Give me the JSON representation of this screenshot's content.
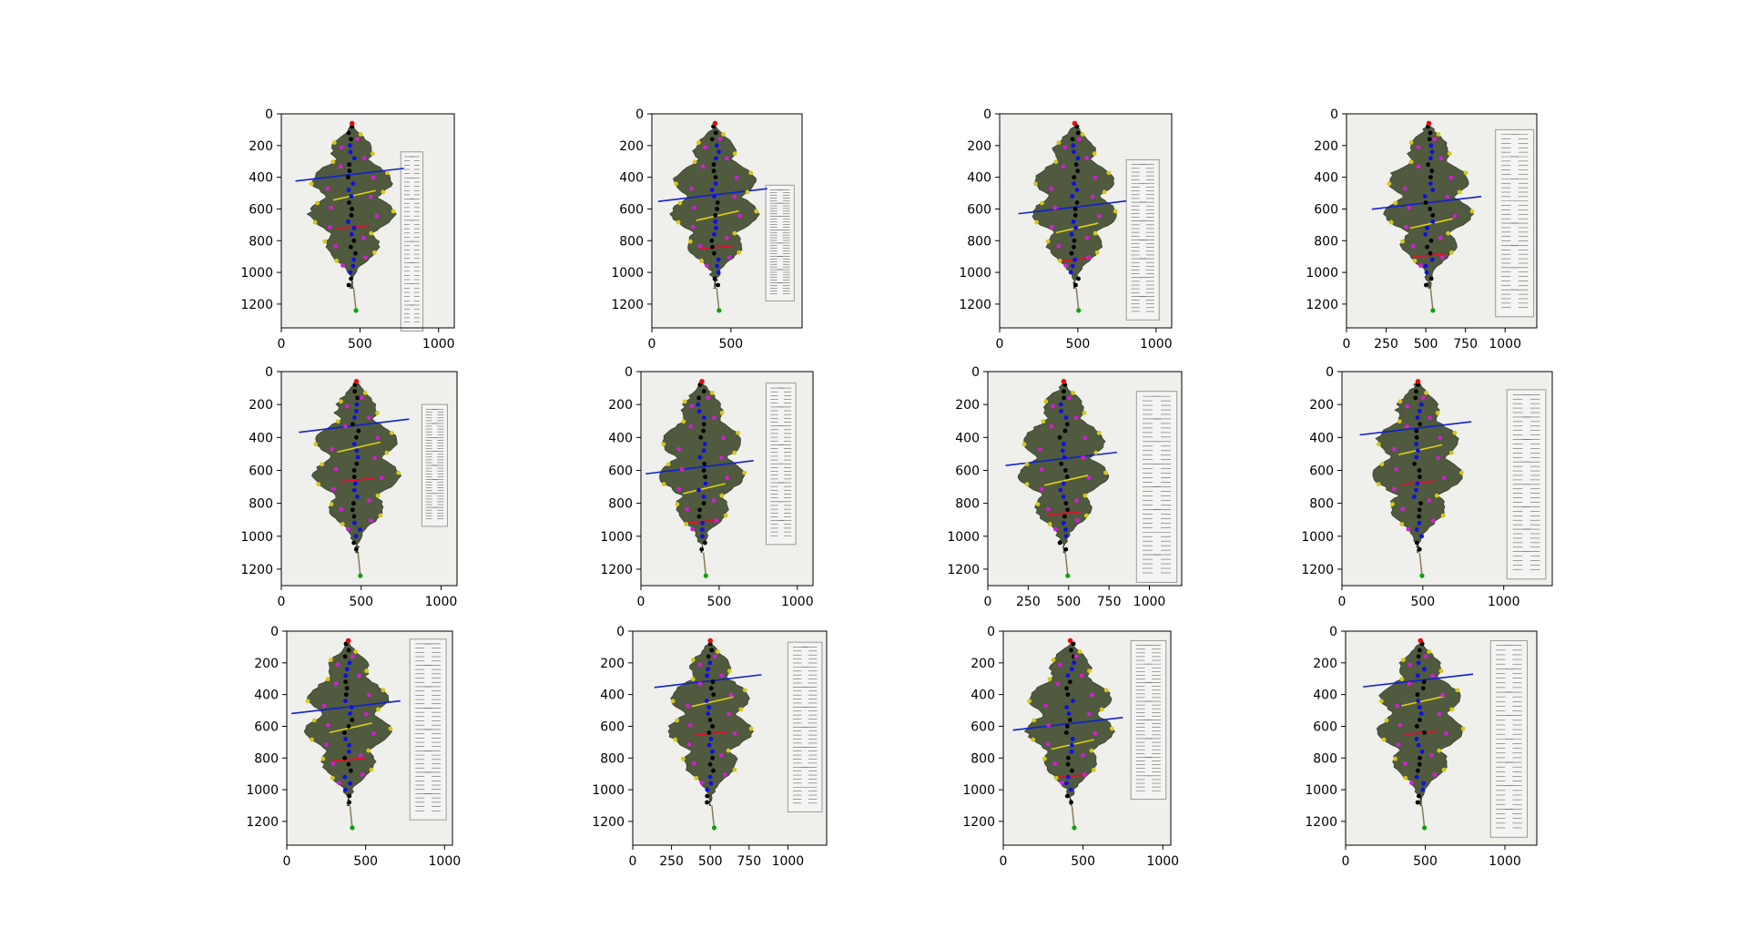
{
  "figure": {
    "rows": 3,
    "cols": 4
  },
  "chart_data": [
    {
      "type": "scatter",
      "image": "leaf",
      "x_ticks": [
        "0",
        "500",
        "1000"
      ],
      "y_ticks": [
        "0",
        "200",
        "400",
        "600",
        "800",
        "1000",
        "1200"
      ],
      "xlim": [
        0,
        1100
      ],
      "ylim": [
        1350,
        0
      ]
    },
    {
      "type": "scatter",
      "image": "leaf",
      "x_ticks": [
        "0",
        "500"
      ],
      "y_ticks": [
        "0",
        "200",
        "400",
        "600",
        "800",
        "1000",
        "1200"
      ],
      "xlim": [
        0,
        950
      ],
      "ylim": [
        1350,
        0
      ]
    },
    {
      "type": "scatter",
      "image": "leaf",
      "x_ticks": [
        "0",
        "500",
        "1000"
      ],
      "y_ticks": [
        "0",
        "200",
        "400",
        "600",
        "800",
        "1000",
        "1200"
      ],
      "xlim": [
        0,
        1100
      ],
      "ylim": [
        1350,
        0
      ]
    },
    {
      "type": "scatter",
      "image": "leaf",
      "x_ticks": [
        "0",
        "250",
        "500",
        "750",
        "1000"
      ],
      "y_ticks": [
        "0",
        "200",
        "400",
        "600",
        "800",
        "1000",
        "1200"
      ],
      "xlim": [
        0,
        1200
      ],
      "ylim": [
        1350,
        0
      ]
    },
    {
      "type": "scatter",
      "image": "leaf",
      "x_ticks": [
        "0",
        "500",
        "1000"
      ],
      "y_ticks": [
        "0",
        "200",
        "400",
        "600",
        "800",
        "1000",
        "1200"
      ],
      "xlim": [
        0,
        1100
      ],
      "ylim": [
        1300,
        0
      ]
    },
    {
      "type": "scatter",
      "image": "leaf",
      "x_ticks": [
        "0",
        "500",
        "1000"
      ],
      "y_ticks": [
        "0",
        "200",
        "400",
        "600",
        "800",
        "1000",
        "1200"
      ],
      "xlim": [
        0,
        1100
      ],
      "ylim": [
        1300,
        0
      ]
    },
    {
      "type": "scatter",
      "image": "leaf",
      "x_ticks": [
        "0",
        "250",
        "500",
        "750",
        "1000"
      ],
      "y_ticks": [
        "0",
        "200",
        "400",
        "600",
        "800",
        "1000",
        "1200"
      ],
      "xlim": [
        0,
        1200
      ],
      "ylim": [
        1300,
        0
      ]
    },
    {
      "type": "scatter",
      "image": "leaf",
      "x_ticks": [
        "0",
        "500",
        "1000"
      ],
      "y_ticks": [
        "0",
        "200",
        "400",
        "600",
        "800",
        "1000",
        "1200"
      ],
      "xlim": [
        0,
        1300
      ],
      "ylim": [
        1300,
        0
      ]
    },
    {
      "type": "scatter",
      "image": "leaf",
      "x_ticks": [
        "0",
        "500",
        "1000"
      ],
      "y_ticks": [
        "0",
        "200",
        "400",
        "600",
        "800",
        "1000",
        "1200"
      ],
      "xlim": [
        0,
        1050
      ],
      "ylim": [
        1350,
        0
      ]
    },
    {
      "type": "scatter",
      "image": "leaf",
      "x_ticks": [
        "0",
        "250",
        "500",
        "750",
        "1000"
      ],
      "y_ticks": [
        "0",
        "200",
        "400",
        "600",
        "800",
        "1000",
        "1200"
      ],
      "xlim": [
        0,
        1250
      ],
      "ylim": [
        1350,
        0
      ]
    },
    {
      "type": "scatter",
      "image": "leaf",
      "x_ticks": [
        "0",
        "500",
        "1000"
      ],
      "y_ticks": [
        "0",
        "200",
        "400",
        "600",
        "800",
        "1000",
        "1200"
      ],
      "xlim": [
        0,
        1050
      ],
      "ylim": [
        1350,
        0
      ]
    },
    {
      "type": "scatter",
      "image": "leaf",
      "x_ticks": [
        "0",
        "500",
        "1000"
      ],
      "y_ticks": [
        "0",
        "200",
        "400",
        "600",
        "800",
        "1000",
        "1200"
      ],
      "xlim": [
        0,
        1200
      ],
      "ylim": [
        1350,
        0
      ]
    }
  ],
  "colors": {
    "leaf": "#4f5a3f",
    "leaf_edge": "#3a4330",
    "background": "#efefeb",
    "ruler": "#f4f4f2",
    "ruler_edge": "#9a9a9a",
    "midrib_dots": "#000000",
    "midrib_alt": "#1010e0",
    "tip_points": "#d4c81a",
    "sinus_points": "#d020d0",
    "apex": "#e01010",
    "base": "#10a010",
    "width_line": "#1020d0",
    "yellow_line": "#e0d010",
    "red_line": "#e01030"
  }
}
